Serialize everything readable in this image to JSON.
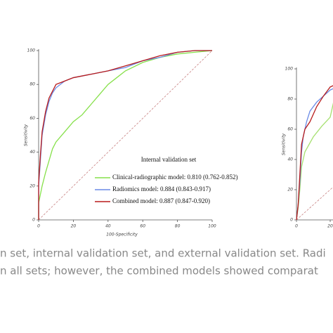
{
  "chart_data": [
    {
      "type": "line",
      "xlabel": "100-Specificity",
      "ylabel": "Sensitivity",
      "legend_title": "Internal validation set",
      "xlim": [
        0,
        100
      ],
      "ylim": [
        0,
        100
      ],
      "xticks": [
        0,
        20,
        40,
        60,
        80,
        100
      ],
      "yticks": [
        0,
        20,
        40,
        60,
        80,
        100
      ],
      "series": [
        {
          "name": "Clinical-radiographic model: 0.810 (0.762-0.852)",
          "color": "#86e04a",
          "x": [
            0,
            0,
            2,
            4,
            6,
            8,
            10,
            15,
            20,
            25,
            30,
            35,
            40,
            45,
            50,
            60,
            70,
            80,
            90,
            100
          ],
          "values": [
            0,
            10,
            20,
            28,
            35,
            42,
            46,
            52,
            58,
            62,
            68,
            74,
            80,
            84,
            88,
            93,
            96,
            98,
            99,
            100
          ]
        },
        {
          "name": "Radiomics model: 0.884 (0.843-0.917)",
          "color": "#6a8ae6",
          "x": [
            0,
            0,
            1,
            2,
            4,
            6,
            8,
            10,
            15,
            20,
            30,
            40,
            50,
            60,
            70,
            80,
            90,
            100
          ],
          "values": [
            0,
            20,
            35,
            50,
            62,
            70,
            75,
            78,
            82,
            84,
            86,
            88,
            90,
            94,
            96,
            99,
            100,
            100
          ]
        },
        {
          "name": "Combined model: 0.887 (0.847-0.920)",
          "color": "#b81c1c",
          "x": [
            0,
            0,
            1,
            2,
            4,
            6,
            8,
            10,
            15,
            20,
            30,
            40,
            50,
            60,
            70,
            80,
            90,
            100
          ],
          "values": [
            0,
            22,
            38,
            52,
            64,
            72,
            76,
            80,
            82,
            84,
            86,
            88,
            91,
            94,
            97,
            99,
            100,
            100
          ]
        }
      ]
    },
    {
      "type": "line",
      "ylabel": "Sensitivity",
      "xlim": [
        0,
        100
      ],
      "ylim": [
        0,
        100
      ],
      "xticks": [
        0,
        20
      ],
      "yticks": [
        0,
        20,
        40,
        60,
        80,
        100
      ],
      "series": [
        {
          "color": "#a6e070",
          "x": [
            0,
            1,
            2,
            3,
            5,
            10,
            15,
            20,
            22,
            24
          ],
          "values": [
            0,
            8,
            20,
            35,
            45,
            55,
            62,
            68,
            78,
            80
          ]
        },
        {
          "color": "#6a8ae6",
          "x": [
            0,
            1,
            2,
            3,
            4,
            6,
            8,
            12,
            16,
            20,
            24
          ],
          "values": [
            0,
            10,
            25,
            45,
            55,
            65,
            72,
            78,
            82,
            86,
            88
          ]
        },
        {
          "color": "#b81c1c",
          "x": [
            0,
            1,
            2,
            3,
            5,
            8,
            12,
            16,
            20,
            24
          ],
          "values": [
            0,
            10,
            30,
            50,
            60,
            65,
            75,
            82,
            88,
            90
          ]
        }
      ]
    }
  ],
  "caption": {
    "lines": [
      "n set, internal validation set, and external validation set. Radi",
      "n all sets; however, the combined models showed comparat"
    ]
  }
}
